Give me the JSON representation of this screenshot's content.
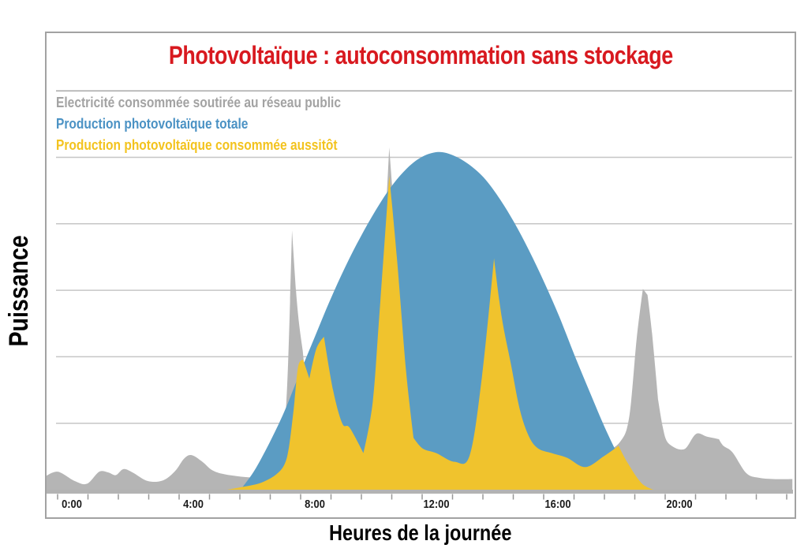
{
  "legend": [
    {
      "series": "grid_consumption",
      "label": "Electricité consommée soutirée au réseau public",
      "color": "#b5b5b5",
      "text_color": "#a3a3a3"
    },
    {
      "series": "pv_total",
      "label": "Production photovoltaïque totale",
      "color": "#5b9cc3",
      "text_color": "#4b92c4"
    },
    {
      "series": "pv_selfconsumed",
      "label": "Production photovoltaïque consommée aussitôt",
      "color": "#f0c32d",
      "text_color": "#f3c31e"
    }
  ],
  "chart_data": {
    "type": "area",
    "title": "Photovoltaïque : autoconsommation sans stockage",
    "title_color": "#d8191f",
    "xlabel": "Heures de la journée",
    "ylabel": "Puissance",
    "x_unit": "hour_of_day",
    "x_range_hours": [
      -0.85,
      23.72
    ],
    "x_tick_labels": [
      "0:00",
      "4:00",
      "8:00",
      "12:00",
      "16:00",
      "20:00"
    ],
    "x_tick_hours": [
      0,
      4,
      8,
      12,
      16,
      20
    ],
    "minor_tick_every_hours": 1,
    "y_range_units": [
      0,
      6.2
    ],
    "y_tick_labels": [],
    "gridlines_y": [
      1,
      2,
      3,
      4,
      5,
      6
    ],
    "grid_on": true,
    "legend_position": "top-left-inside",
    "series": [
      {
        "id": "grid_consumption",
        "name": "Electricité consommée soutirée au réseau public",
        "points": [
          [
            -0.85,
            0.21
          ],
          [
            -0.45,
            0.27
          ],
          [
            0.1,
            0.13
          ],
          [
            0.5,
            0.09
          ],
          [
            0.9,
            0.27
          ],
          [
            1.2,
            0.26
          ],
          [
            1.45,
            0.22
          ],
          [
            1.7,
            0.31
          ],
          [
            2.0,
            0.26
          ],
          [
            2.5,
            0.13
          ],
          [
            3.0,
            0.14
          ],
          [
            3.4,
            0.28
          ],
          [
            3.7,
            0.47
          ],
          [
            3.95,
            0.52
          ],
          [
            4.3,
            0.42
          ],
          [
            4.6,
            0.3
          ],
          [
            4.95,
            0.24
          ],
          [
            5.5,
            0.2
          ],
          [
            6.1,
            0.18
          ],
          [
            6.55,
            0.2
          ],
          [
            6.8,
            0.38,
            1
          ],
          [
            7.0,
            0.95
          ],
          [
            7.12,
            1.9
          ],
          [
            7.25,
            3.9,
            1
          ],
          [
            7.38,
            3.0
          ],
          [
            7.48,
            2.5
          ],
          [
            7.6,
            2.1,
            1
          ],
          [
            7.75,
            1.6
          ],
          [
            7.95,
            1.8
          ],
          [
            8.3,
            2.3
          ],
          [
            8.7,
            1.1
          ],
          [
            9.6,
            0.6
          ],
          [
            10.12,
            2.6
          ],
          [
            10.45,
            5.15,
            1
          ],
          [
            10.75,
            3.4
          ],
          [
            11.25,
            0.8
          ],
          [
            12.0,
            0.6
          ],
          [
            12.6,
            0.45
          ],
          [
            13.1,
            0.55
          ],
          [
            13.9,
            3.45
          ],
          [
            14.4,
            2.0
          ],
          [
            15.0,
            0.9
          ],
          [
            15.7,
            0.62
          ],
          [
            16.9,
            0.42
          ],
          [
            17.5,
            0.55
          ],
          [
            18.05,
            0.72
          ],
          [
            18.35,
            1.1
          ],
          [
            18.6,
            2.3
          ],
          [
            18.8,
            3.02,
            1
          ],
          [
            18.95,
            2.93,
            1
          ],
          [
            19.1,
            2.35
          ],
          [
            19.3,
            1.35,
            1
          ],
          [
            19.45,
            0.95
          ],
          [
            19.6,
            0.72
          ],
          [
            19.9,
            0.62,
            1
          ],
          [
            20.2,
            0.62
          ],
          [
            20.55,
            0.84
          ],
          [
            20.9,
            0.8
          ],
          [
            21.3,
            0.76,
            1
          ],
          [
            21.45,
            0.66
          ],
          [
            21.75,
            0.56
          ],
          [
            22.2,
            0.25
          ],
          [
            22.6,
            0.18
          ],
          [
            23.1,
            0.16
          ],
          [
            23.72,
            0.16
          ]
        ]
      },
      {
        "id": "pv_total",
        "name": "Production photovoltaïque totale",
        "points": [
          [
            5.55,
            0
          ],
          [
            6.0,
            0.28
          ],
          [
            6.5,
            0.7
          ],
          [
            7.0,
            1.18
          ],
          [
            7.5,
            1.75
          ],
          [
            8.0,
            2.3
          ],
          [
            8.5,
            2.85
          ],
          [
            9.0,
            3.35
          ],
          [
            9.5,
            3.8
          ],
          [
            10.0,
            4.2
          ],
          [
            10.5,
            4.55
          ],
          [
            11.0,
            4.82
          ],
          [
            11.5,
            5.0
          ],
          [
            12.05,
            5.08
          ],
          [
            12.55,
            5.03
          ],
          [
            13.05,
            4.9
          ],
          [
            13.55,
            4.7
          ],
          [
            14.05,
            4.4
          ],
          [
            14.55,
            4.03
          ],
          [
            15.05,
            3.6
          ],
          [
            15.55,
            3.12
          ],
          [
            16.05,
            2.6
          ],
          [
            16.55,
            2.02
          ],
          [
            17.05,
            1.47
          ],
          [
            17.55,
            0.93
          ],
          [
            18.0,
            0.5
          ],
          [
            18.4,
            0.12
          ],
          [
            18.55,
            0
          ]
        ]
      },
      {
        "id": "pv_selfconsumed",
        "name": "Production photovoltaïque consommée aussitôt",
        "points": [
          [
            5.1,
            0
          ],
          [
            5.6,
            0.04
          ],
          [
            6.2,
            0.1
          ],
          [
            6.7,
            0.22
          ],
          [
            7.0,
            0.38
          ],
          [
            7.15,
            0.65
          ],
          [
            7.3,
            1.2
          ],
          [
            7.45,
            1.85
          ],
          [
            7.62,
            1.95,
            1
          ],
          [
            7.82,
            1.67,
            1
          ],
          [
            8.05,
            2.12
          ],
          [
            8.3,
            2.3,
            1
          ],
          [
            8.6,
            1.5
          ],
          [
            8.9,
            1.0
          ],
          [
            9.15,
            0.93
          ],
          [
            9.6,
            0.55,
            1
          ],
          [
            9.9,
            1.3
          ],
          [
            10.12,
            2.6
          ],
          [
            10.45,
            4.72,
            1
          ],
          [
            10.7,
            3.5
          ],
          [
            11.0,
            1.8
          ],
          [
            11.25,
            0.78,
            1
          ],
          [
            11.55,
            0.62
          ],
          [
            12.0,
            0.55
          ],
          [
            12.6,
            0.42
          ],
          [
            13.1,
            0.52
          ],
          [
            13.5,
            1.7
          ],
          [
            13.9,
            3.48,
            1
          ],
          [
            14.15,
            2.6
          ],
          [
            14.45,
            1.9
          ],
          [
            14.75,
            1.2
          ],
          [
            15.05,
            0.8
          ],
          [
            15.35,
            0.62
          ],
          [
            15.8,
            0.55
          ],
          [
            16.3,
            0.48
          ],
          [
            16.9,
            0.34
          ],
          [
            17.5,
            0.5
          ],
          [
            18.0,
            0.66,
            1
          ],
          [
            18.3,
            0.4
          ],
          [
            18.75,
            0.1
          ],
          [
            19.15,
            0
          ]
        ]
      }
    ]
  }
}
